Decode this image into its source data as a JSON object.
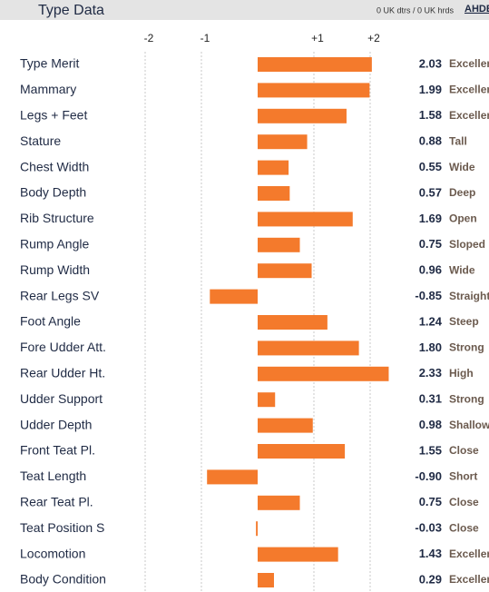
{
  "chart_data": {
    "type": "bar",
    "orientation": "horizontal",
    "title": "Type Data",
    "subtitle": "0 UK dtrs / 0 UK hrds",
    "logo": "AHDB",
    "color": "#f47a2c",
    "categories": [
      "Type Merit",
      "Mammary",
      "Legs + Feet",
      "Stature",
      "Chest Width",
      "Body Depth",
      "Rib Structure",
      "Rump Angle",
      "Rump Width",
      "Rear Legs SV",
      "Foot Angle",
      "Fore Udder Att.",
      "Rear Udder Ht.",
      "Udder Support",
      "Udder Depth",
      "Front Teat Pl.",
      "Teat Length",
      "Rear Teat Pl.",
      "Teat Position S",
      "Locomotion",
      "Body Condition"
    ],
    "values": [
      2.03,
      1.99,
      1.58,
      0.88,
      0.55,
      0.57,
      1.69,
      0.75,
      0.96,
      -0.85,
      1.24,
      1.8,
      2.33,
      0.31,
      0.98,
      1.55,
      -0.9,
      0.75,
      -0.03,
      1.43,
      0.29
    ],
    "value_labels": [
      "2.03",
      "1.99",
      "1.58",
      "0.88",
      "0.55",
      "0.57",
      "1.69",
      "0.75",
      "0.96",
      "-0.85",
      "1.24",
      "1.80",
      "2.33",
      "0.31",
      "0.98",
      "1.55",
      "-0.90",
      "0.75",
      "-0.03",
      "1.43",
      "0.29"
    ],
    "descriptors": [
      "Excellent",
      "Excellent",
      "Excellent",
      "Tall",
      "Wide",
      "Deep",
      "Open",
      "Sloped",
      "Wide",
      "Straight",
      "Steep",
      "Strong",
      "High",
      "Strong",
      "Shallow",
      "Close",
      "Short",
      "Close",
      "Close",
      "Excellent",
      "Excellent"
    ],
    "xlim": [
      -2.1,
      2.5
    ],
    "xticks": [
      -2,
      -1,
      {
        "value": 1,
        "label": "+1"
      },
      {
        "value": 2,
        "label": "+2"
      }
    ],
    "grid": true
  }
}
